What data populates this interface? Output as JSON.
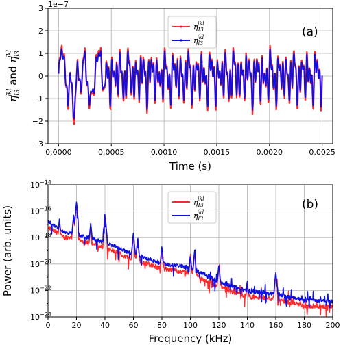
{
  "chart_data": [
    {
      "type": "line",
      "panel_label": "(a)",
      "xlabel": "Time (s)",
      "ylabel_main": "η",
      "ylabel_sub1": "I3",
      "ylabel_sup1": "jkl",
      "ylabel_and": "and",
      "ylabel_sub2": "l3",
      "ylabel_sup2": "jkl",
      "xlim": [
        -0.0001,
        0.0026
      ],
      "ylim": [
        -3e-07,
        3e-07
      ],
      "y_multiplier": "1e−7",
      "grid": true,
      "legend_position": "top-center",
      "xticks": [
        {
          "v": 0.0,
          "label": "0.0000"
        },
        {
          "v": 0.0005,
          "label": "0.0005"
        },
        {
          "v": 0.001,
          "label": "0.0010"
        },
        {
          "v": 0.0015,
          "label": "0.0015"
        },
        {
          "v": 0.002,
          "label": "0.0020"
        },
        {
          "v": 0.0025,
          "label": "0.0025"
        }
      ],
      "yticks": [
        {
          "v": -3e-07,
          "label": "−3"
        },
        {
          "v": -2e-07,
          "label": "−2"
        },
        {
          "v": -1e-07,
          "label": "−1"
        },
        {
          "v": 0,
          "label": "0"
        },
        {
          "v": 1e-07,
          "label": "1"
        },
        {
          "v": 2e-07,
          "label": "2"
        },
        {
          "v": 3e-07,
          "label": "3"
        }
      ],
      "series": [
        {
          "name_main": "η",
          "name_sub": "I3",
          "name_sup": "jkl",
          "color": "#ff2a2a",
          "amp_scale": 1.12
        },
        {
          "name_main": "η",
          "name_sub": "l3",
          "name_sup": "jkl",
          "color": "#1010e0",
          "amp_scale": 1.0
        }
      ],
      "x_start": 0.0,
      "x_end": 0.0025,
      "key_points": [
        {
          "x": 0.0,
          "y": -1e-08
        },
        {
          "x": 3e-05,
          "y": 1.4e-07
        },
        {
          "x": 6e-05,
          "y": 9e-08
        },
        {
          "x": 9e-05,
          "y": -2e-07
        },
        {
          "x": 0.00011,
          "y": 4e-08
        },
        {
          "x": 0.00015,
          "y": -2.4e-07
        },
        {
          "x": 0.00018,
          "y": 1e-07
        },
        {
          "x": 0.00021,
          "y": -9e-08
        },
        {
          "x": 0.00025,
          "y": 1.2e-07
        },
        {
          "x": 0.00029,
          "y": -1.3e-07
        },
        {
          "x": 0.00033,
          "y": -9e-08
        },
        {
          "x": 0.00036,
          "y": 8e-08
        },
        {
          "x": 0.0004,
          "y": 1.35e-07
        },
        {
          "x": 0.00043,
          "y": -1.2e-07
        },
        {
          "x": 0.00047,
          "y": 9e-08
        },
        {
          "x": 0.00054,
          "y": -1.1e-07
        },
        {
          "x": 0.00057,
          "y": 1.1e-07
        },
        {
          "x": 0.00064,
          "y": 1e-07
        },
        {
          "x": 0.00066,
          "y": -1.3e-07
        },
        {
          "x": 0.00072,
          "y": 1.1e-07
        },
        {
          "x": 0.00075,
          "y": -1.3e-07
        },
        {
          "x": 0.0009,
          "y": 1e-07
        },
        {
          "x": 0.001,
          "y": 1.1e-07
        },
        {
          "x": 0.0012,
          "y": 1e-07
        },
        {
          "x": 0.0014,
          "y": -1e-07
        },
        {
          "x": 0.0016,
          "y": 1.05e-07
        },
        {
          "x": 0.0018,
          "y": 1e-07
        },
        {
          "x": 0.002,
          "y": 1.05e-07
        },
        {
          "x": 0.0022,
          "y": 1e-07
        },
        {
          "x": 0.0024,
          "y": 1.05e-07
        },
        {
          "x": 0.0025,
          "y": -2e-08
        }
      ]
    },
    {
      "type": "line",
      "panel_label": "(b)",
      "xlabel": "Frequency (kHz)",
      "ylabel": "Power (arb. units)",
      "xlim": [
        0,
        200
      ],
      "ylim": [
        1e-24,
        1e-14
      ],
      "y_scale": "log",
      "grid": true,
      "legend_position": "top-center",
      "xticks": [
        {
          "v": 0,
          "label": "0"
        },
        {
          "v": 20,
          "label": "20"
        },
        {
          "v": 40,
          "label": "40"
        },
        {
          "v": 60,
          "label": "60"
        },
        {
          "v": 80,
          "label": "80"
        },
        {
          "v": 100,
          "label": "100"
        },
        {
          "v": 120,
          "label": "120"
        },
        {
          "v": 140,
          "label": "140"
        },
        {
          "v": 160,
          "label": "160"
        },
        {
          "v": 180,
          "label": "180"
        },
        {
          "v": 200,
          "label": "200"
        }
      ],
      "yticks": [
        {
          "exp": -14,
          "base": "10",
          "sup": "−14"
        },
        {
          "exp": -16,
          "base": "10",
          "sup": "−16"
        },
        {
          "exp": -18,
          "base": "10",
          "sup": "−18"
        },
        {
          "exp": -20,
          "base": "10",
          "sup": "−20"
        },
        {
          "exp": -22,
          "base": "10",
          "sup": "−22"
        },
        {
          "exp": -24,
          "base": "10",
          "sup": "−24"
        }
      ],
      "series": [
        {
          "name_main": "η",
          "name_sub": "I3",
          "name_sup": "jkl",
          "color": "#ff2a2a"
        },
        {
          "name_main": "η",
          "name_sub": "l3",
          "name_sup": "jkl",
          "color": "#1010e0"
        }
      ],
      "baseline_log10": [
        {
          "x": 0,
          "y": -16.8
        },
        {
          "x": 10,
          "y": -17.6
        },
        {
          "x": 20,
          "y": -17.8
        },
        {
          "x": 40,
          "y": -18.4
        },
        {
          "x": 60,
          "y": -19.3
        },
        {
          "x": 80,
          "y": -20.0
        },
        {
          "x": 100,
          "y": -20.3
        },
        {
          "x": 120,
          "y": -21.4
        },
        {
          "x": 140,
          "y": -22.1
        },
        {
          "x": 160,
          "y": -22.3
        },
        {
          "x": 180,
          "y": -22.8
        },
        {
          "x": 200,
          "y": -22.9
        }
      ],
      "peaks_log10": [
        {
          "x": 20,
          "y": -15.3
        },
        {
          "x": 40,
          "y": -16.2
        },
        {
          "x": 18,
          "y": -16.3
        },
        {
          "x": 8,
          "y": -16.6
        },
        {
          "x": 30,
          "y": -16.9
        },
        {
          "x": 60,
          "y": -17.6
        },
        {
          "x": 63,
          "y": -18.0
        },
        {
          "x": 80,
          "y": -18.6
        },
        {
          "x": 100,
          "y": -19.3
        },
        {
          "x": 103,
          "y": -19.0
        },
        {
          "x": 120,
          "y": -20.0
        },
        {
          "x": 140,
          "y": -21.2
        },
        {
          "x": 160,
          "y": -20.6
        }
      ]
    }
  ]
}
